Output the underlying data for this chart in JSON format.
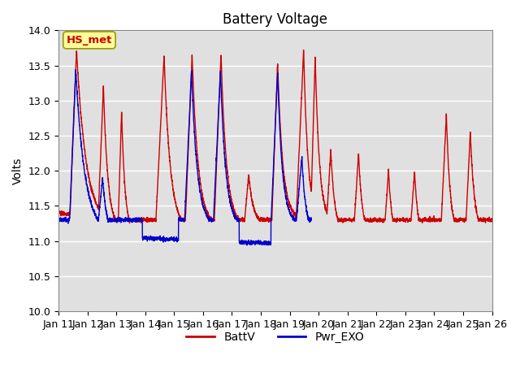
{
  "title": "Battery Voltage",
  "ylabel": "Volts",
  "xlabel": "",
  "ylim": [
    10.0,
    14.0
  ],
  "yticks": [
    10.0,
    10.5,
    11.0,
    11.5,
    12.0,
    12.5,
    13.0,
    13.5,
    14.0
  ],
  "xtick_labels": [
    "Jan 11",
    "Jan 12",
    "Jan 13",
    "Jan 14",
    "Jan 15",
    "Jan 16",
    "Jan 17",
    "Jan 18",
    "Jan 19",
    "Jan 20",
    "Jan 21",
    "Jan 22",
    "Jan 23",
    "Jan 24",
    "Jan 25",
    "Jan 26"
  ],
  "batt_color": "#cc0000",
  "pwr_color": "#0000cc",
  "annotation_text": "HS_met",
  "annotation_color": "#cc0000",
  "annotation_bg": "#ffff99",
  "background_color": "#e0e0e0",
  "title_fontsize": 12,
  "axis_fontsize": 10,
  "tick_fontsize": 9,
  "legend_fontsize": 10
}
